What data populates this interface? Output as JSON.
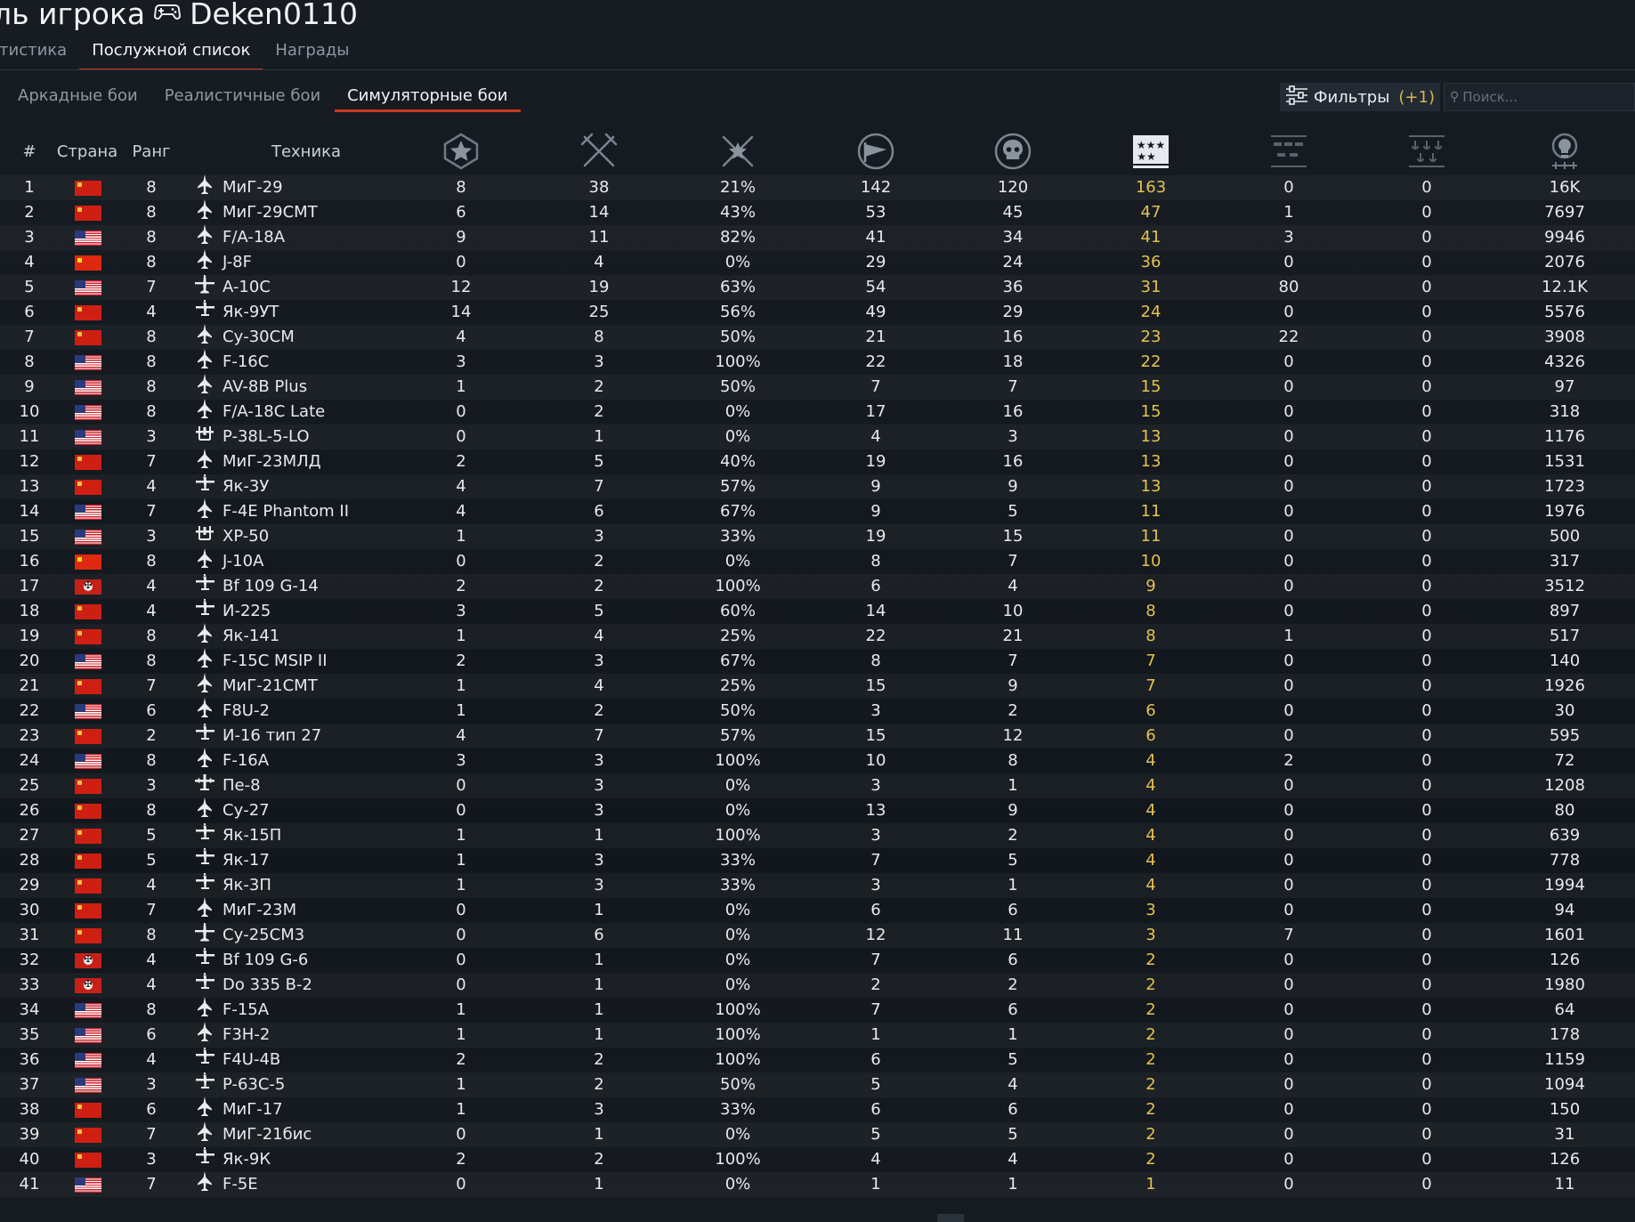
{
  "header": {
    "title": "ль игрока",
    "player_name": "Deken0110"
  },
  "main_tabs": [
    {
      "label": "атистика",
      "active": false
    },
    {
      "label": "Послужной список",
      "active": true
    },
    {
      "label": "Награды",
      "active": false
    }
  ],
  "mode_tabs": [
    {
      "label": "Аркадные бои",
      "active": false
    },
    {
      "label": "Реалистичные бои",
      "active": false
    },
    {
      "label": "Симуляторные бои",
      "active": true
    }
  ],
  "filters": {
    "label": "Фильтры",
    "count": "(+1)"
  },
  "search": {
    "placeholder": "Поиск..."
  },
  "columns": {
    "num": "#",
    "country": "Страна",
    "rank": "Ранг",
    "vehicle": "Техника",
    "icons": [
      "star-badge-icon",
      "crossed-swords-icon",
      "swords-star-icon",
      "flag-icon",
      "skull-icon",
      "medal-stars-icon",
      "tanks-row-icon",
      "ship-anchors-icon",
      "lightbulb-icon"
    ]
  },
  "colors": {
    "accent": "#c9381f",
    "highlight": "#e4c24f",
    "background": "#151a21"
  },
  "rows": [
    {
      "n": "1",
      "flag": "ussr",
      "rank": "8",
      "veh": "МиГ-29",
      "icon": "jet",
      "v": [
        "8",
        "38",
        "21%",
        "142",
        "120",
        "163",
        "0",
        "0",
        "16K"
      ]
    },
    {
      "n": "2",
      "flag": "ussr",
      "rank": "8",
      "veh": "МиГ-29СМТ",
      "icon": "jet",
      "v": [
        "6",
        "14",
        "43%",
        "53",
        "45",
        "47",
        "1",
        "0",
        "7697"
      ]
    },
    {
      "n": "3",
      "flag": "usa",
      "rank": "8",
      "veh": "F/A-18A",
      "icon": "jet",
      "v": [
        "9",
        "11",
        "82%",
        "41",
        "34",
        "41",
        "3",
        "0",
        "9946"
      ]
    },
    {
      "n": "4",
      "flag": "china",
      "rank": "8",
      "veh": "J-8F",
      "icon": "jet",
      "v": [
        "0",
        "4",
        "0%",
        "29",
        "24",
        "36",
        "0",
        "0",
        "2076"
      ]
    },
    {
      "n": "5",
      "flag": "usa",
      "rank": "7",
      "veh": "A-10C",
      "icon": "attacker",
      "v": [
        "12",
        "19",
        "63%",
        "54",
        "36",
        "31",
        "80",
        "0",
        "12.1K"
      ]
    },
    {
      "n": "6",
      "flag": "ussr",
      "rank": "4",
      "veh": "Як-9УТ",
      "icon": "prop",
      "v": [
        "14",
        "25",
        "56%",
        "49",
        "29",
        "24",
        "0",
        "0",
        "5576"
      ]
    },
    {
      "n": "7",
      "flag": "ussr",
      "rank": "8",
      "veh": "Су-30СМ",
      "icon": "jet",
      "v": [
        "4",
        "8",
        "50%",
        "21",
        "16",
        "23",
        "22",
        "0",
        "3908"
      ]
    },
    {
      "n": "8",
      "flag": "usa",
      "rank": "8",
      "veh": "F-16C",
      "icon": "jet",
      "v": [
        "3",
        "3",
        "100%",
        "22",
        "18",
        "22",
        "0",
        "0",
        "4326"
      ]
    },
    {
      "n": "9",
      "flag": "usa",
      "rank": "8",
      "veh": "AV-8B Plus",
      "icon": "jet",
      "v": [
        "1",
        "2",
        "50%",
        "7",
        "7",
        "15",
        "0",
        "0",
        "97"
      ]
    },
    {
      "n": "10",
      "flag": "usa",
      "rank": "8",
      "veh": "F/A-18C Late",
      "icon": "jet",
      "v": [
        "0",
        "2",
        "0%",
        "17",
        "16",
        "15",
        "0",
        "0",
        "318"
      ]
    },
    {
      "n": "11",
      "flag": "usa",
      "rank": "3",
      "veh": "P-38L-5-LO",
      "icon": "twin",
      "v": [
        "0",
        "1",
        "0%",
        "4",
        "3",
        "13",
        "0",
        "0",
        "1176"
      ]
    },
    {
      "n": "12",
      "flag": "ussr",
      "rank": "7",
      "veh": "МиГ-23МЛД",
      "icon": "jet",
      "v": [
        "2",
        "5",
        "40%",
        "19",
        "16",
        "13",
        "0",
        "0",
        "1531"
      ]
    },
    {
      "n": "13",
      "flag": "ussr",
      "rank": "4",
      "veh": "Як-3У",
      "icon": "prop",
      "v": [
        "4",
        "7",
        "57%",
        "9",
        "9",
        "13",
        "0",
        "0",
        "1723"
      ]
    },
    {
      "n": "14",
      "flag": "usa",
      "rank": "7",
      "veh": "F-4E Phantom II",
      "icon": "jet",
      "v": [
        "4",
        "6",
        "67%",
        "9",
        "5",
        "11",
        "0",
        "0",
        "1976"
      ]
    },
    {
      "n": "15",
      "flag": "usa",
      "rank": "3",
      "veh": "XP-50",
      "icon": "twin",
      "v": [
        "1",
        "3",
        "33%",
        "19",
        "15",
        "11",
        "0",
        "0",
        "500"
      ]
    },
    {
      "n": "16",
      "flag": "china",
      "rank": "8",
      "veh": "J-10A",
      "icon": "jet",
      "v": [
        "0",
        "2",
        "0%",
        "8",
        "7",
        "10",
        "0",
        "0",
        "317"
      ]
    },
    {
      "n": "17",
      "flag": "germany",
      "rank": "4",
      "veh": "Bf 109 G-14",
      "icon": "prop",
      "v": [
        "2",
        "2",
        "100%",
        "6",
        "4",
        "9",
        "0",
        "0",
        "3512"
      ]
    },
    {
      "n": "18",
      "flag": "ussr",
      "rank": "4",
      "veh": "И-225",
      "icon": "prop",
      "v": [
        "3",
        "5",
        "60%",
        "14",
        "10",
        "8",
        "0",
        "0",
        "897"
      ]
    },
    {
      "n": "19",
      "flag": "ussr",
      "rank": "8",
      "veh": "Як-141",
      "icon": "jet",
      "v": [
        "1",
        "4",
        "25%",
        "22",
        "21",
        "8",
        "1",
        "0",
        "517"
      ]
    },
    {
      "n": "20",
      "flag": "usa",
      "rank": "8",
      "veh": "F-15C MSIP II",
      "icon": "jet",
      "v": [
        "2",
        "3",
        "67%",
        "8",
        "7",
        "7",
        "0",
        "0",
        "140"
      ]
    },
    {
      "n": "21",
      "flag": "ussr",
      "rank": "7",
      "veh": "МиГ-21СМТ",
      "icon": "jet",
      "v": [
        "1",
        "4",
        "25%",
        "15",
        "9",
        "7",
        "0",
        "0",
        "1926"
      ]
    },
    {
      "n": "22",
      "flag": "usa",
      "rank": "6",
      "veh": "F8U-2",
      "icon": "jet",
      "v": [
        "1",
        "2",
        "50%",
        "3",
        "2",
        "6",
        "0",
        "0",
        "30"
      ]
    },
    {
      "n": "23",
      "flag": "ussr",
      "rank": "2",
      "veh": "И-16 тип 27",
      "icon": "prop",
      "v": [
        "4",
        "7",
        "57%",
        "15",
        "12",
        "6",
        "0",
        "0",
        "595"
      ]
    },
    {
      "n": "24",
      "flag": "usa",
      "rank": "8",
      "veh": "F-16A",
      "icon": "jet",
      "v": [
        "3",
        "3",
        "100%",
        "10",
        "8",
        "4",
        "2",
        "0",
        "72"
      ]
    },
    {
      "n": "25",
      "flag": "ussr",
      "rank": "3",
      "veh": "Пе-8",
      "icon": "bomber",
      "v": [
        "0",
        "3",
        "0%",
        "3",
        "1",
        "4",
        "0",
        "0",
        "1208"
      ]
    },
    {
      "n": "26",
      "flag": "ussr",
      "rank": "8",
      "veh": "Су-27",
      "icon": "jet",
      "v": [
        "0",
        "3",
        "0%",
        "13",
        "9",
        "4",
        "0",
        "0",
        "80"
      ]
    },
    {
      "n": "27",
      "flag": "ussr",
      "rank": "5",
      "veh": "Як-15П",
      "icon": "prop",
      "v": [
        "1",
        "1",
        "100%",
        "3",
        "2",
        "4",
        "0",
        "0",
        "639"
      ]
    },
    {
      "n": "28",
      "flag": "ussr",
      "rank": "5",
      "veh": "Як-17",
      "icon": "prop",
      "v": [
        "1",
        "3",
        "33%",
        "7",
        "5",
        "4",
        "0",
        "0",
        "778"
      ]
    },
    {
      "n": "29",
      "flag": "ussr",
      "rank": "4",
      "veh": "Як-3П",
      "icon": "prop",
      "v": [
        "1",
        "3",
        "33%",
        "3",
        "1",
        "4",
        "0",
        "0",
        "1994"
      ]
    },
    {
      "n": "30",
      "flag": "ussr",
      "rank": "7",
      "veh": "МиГ-23М",
      "icon": "jet",
      "v": [
        "0",
        "1",
        "0%",
        "6",
        "6",
        "3",
        "0",
        "0",
        "94"
      ]
    },
    {
      "n": "31",
      "flag": "ussr",
      "rank": "8",
      "veh": "Су-25СМ3",
      "icon": "attacker",
      "v": [
        "0",
        "6",
        "0%",
        "12",
        "11",
        "3",
        "7",
        "0",
        "1601"
      ]
    },
    {
      "n": "32",
      "flag": "germany",
      "rank": "4",
      "veh": "Bf 109 G-6",
      "icon": "prop",
      "v": [
        "0",
        "1",
        "0%",
        "7",
        "6",
        "2",
        "0",
        "0",
        "126"
      ]
    },
    {
      "n": "33",
      "flag": "germany",
      "rank": "4",
      "veh": "Do 335 B-2",
      "icon": "prop",
      "v": [
        "0",
        "1",
        "0%",
        "2",
        "2",
        "2",
        "0",
        "0",
        "1980"
      ]
    },
    {
      "n": "34",
      "flag": "usa",
      "rank": "8",
      "veh": "F-15A",
      "icon": "jet",
      "v": [
        "1",
        "1",
        "100%",
        "7",
        "6",
        "2",
        "0",
        "0",
        "64"
      ]
    },
    {
      "n": "35",
      "flag": "usa",
      "rank": "6",
      "veh": "F3H-2",
      "icon": "jet",
      "v": [
        "1",
        "1",
        "100%",
        "1",
        "1",
        "2",
        "0",
        "0",
        "178"
      ]
    },
    {
      "n": "36",
      "flag": "usa",
      "rank": "4",
      "veh": "F4U-4B",
      "icon": "prop",
      "v": [
        "2",
        "2",
        "100%",
        "6",
        "5",
        "2",
        "0",
        "0",
        "1159"
      ]
    },
    {
      "n": "37",
      "flag": "usa",
      "rank": "3",
      "veh": "P-63C-5",
      "icon": "prop",
      "v": [
        "1",
        "2",
        "50%",
        "5",
        "4",
        "2",
        "0",
        "0",
        "1094"
      ]
    },
    {
      "n": "38",
      "flag": "ussr",
      "rank": "6",
      "veh": "МиГ-17",
      "icon": "jet",
      "v": [
        "1",
        "3",
        "33%",
        "6",
        "6",
        "2",
        "0",
        "0",
        "150"
      ]
    },
    {
      "n": "39",
      "flag": "ussr",
      "rank": "7",
      "veh": "МиГ-21бис",
      "icon": "jet",
      "v": [
        "0",
        "1",
        "0%",
        "5",
        "5",
        "2",
        "0",
        "0",
        "31"
      ]
    },
    {
      "n": "40",
      "flag": "ussr",
      "rank": "3",
      "veh": "Як-9К",
      "icon": "prop",
      "v": [
        "2",
        "2",
        "100%",
        "4",
        "4",
        "2",
        "0",
        "0",
        "126"
      ]
    },
    {
      "n": "41",
      "flag": "usa",
      "rank": "7",
      "veh": "F-5E",
      "icon": "jet",
      "v": [
        "0",
        "1",
        "0%",
        "1",
        "1",
        "1",
        "0",
        "0",
        "11"
      ]
    }
  ]
}
